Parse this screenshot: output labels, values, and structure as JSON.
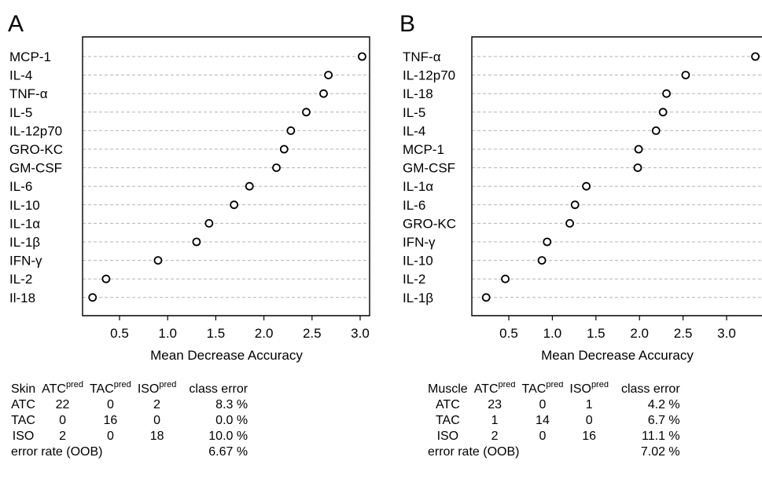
{
  "chart_data": [
    {
      "type": "scatter",
      "panel": "A",
      "xlabel": "Mean Decrease Accuracy",
      "ylabel": "",
      "xticks": [
        0.5,
        1.0,
        1.5,
        2.0,
        2.5,
        3.0
      ],
      "xtick_labels": [
        "0.5",
        "1.0",
        "1.5",
        "2.0",
        "2.5",
        "3.0"
      ],
      "xlim": [
        0.1,
        3.15
      ],
      "grid": "horizontal dashed",
      "categories": [
        "MCP-1",
        "IL-4",
        "TNF-α",
        "IL-5",
        "IL-12p70",
        "GRO-KC",
        "GM-CSF",
        "IL-6",
        "IL-10",
        "IL-1α",
        "IL-1β",
        "IFN-γ",
        "IL-2",
        "Il-18"
      ],
      "values": [
        3.02,
        2.67,
        2.62,
        2.44,
        2.28,
        2.21,
        2.13,
        1.85,
        1.69,
        1.43,
        1.3,
        0.9,
        0.36,
        0.22
      ]
    },
    {
      "type": "scatter",
      "panel": "B",
      "xlabel": "Mean Decrease Accuracy",
      "ylabel": "",
      "xticks": [
        0.5,
        1.0,
        1.5,
        2.0,
        2.5,
        3.0
      ],
      "xtick_labels": [
        "0.5",
        "1.0",
        "1.5",
        "2.0",
        "2.5",
        "3.0"
      ],
      "xlim": [
        0.1,
        3.4
      ],
      "grid": "horizontal dashed",
      "categories": [
        "TNF-α",
        "IL-12p70",
        "IL-18",
        "IL-5",
        "IL-4",
        "MCP-1",
        "GM-CSF",
        "IL-1α",
        "IL-6",
        "GRO-KC",
        "IFN-γ",
        "IL-10",
        "IL-2",
        "IL-1β"
      ],
      "values": [
        3.33,
        2.53,
        2.31,
        2.27,
        2.19,
        1.99,
        1.98,
        1.39,
        1.26,
        1.2,
        0.94,
        0.88,
        0.46,
        0.24
      ]
    }
  ],
  "tables": [
    {
      "title": "Skin",
      "columns": [
        "ATC",
        "TAC",
        "ISO"
      ],
      "sup": "pred",
      "last_col": "class error",
      "rows": [
        {
          "label": "ATC",
          "v": [
            "22",
            "0",
            "2"
          ],
          "err": "8.3 %"
        },
        {
          "label": "TAC",
          "v": [
            "0",
            "16",
            "0"
          ],
          "err": "0.0 %"
        },
        {
          "label": "ISO",
          "v": [
            "2",
            "0",
            "18"
          ],
          "err": "10.0 %"
        }
      ],
      "oob_label": "error rate (OOB)",
      "oob": "6.67 %"
    },
    {
      "title": "Muscle",
      "columns": [
        "ATC",
        "TAC",
        "ISO"
      ],
      "sup": "pred",
      "last_col": "class error",
      "rows": [
        {
          "label": "ATC",
          "v": [
            "23",
            "0",
            "1"
          ],
          "err": "4.2 %"
        },
        {
          "label": "TAC",
          "v": [
            "1",
            "14",
            "0"
          ],
          "err": "6.7 %"
        },
        {
          "label": "ISO",
          "v": [
            "2",
            "0",
            "16"
          ],
          "err": "11.1 %"
        }
      ],
      "oob_label": "error rate (OOB)",
      "oob": "7.02 %"
    }
  ]
}
